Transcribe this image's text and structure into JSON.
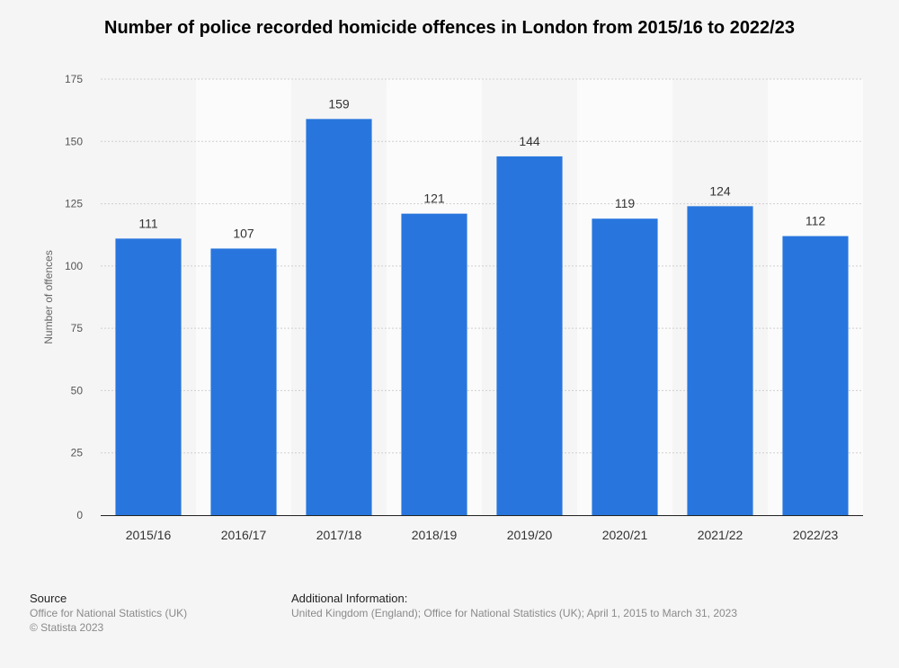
{
  "chart_data": {
    "type": "bar",
    "title": "Number of police recorded homicide offences in London from 2015/16 to 2022/23",
    "ylabel": "Number of offences",
    "xlabel": "",
    "categories": [
      "2015/16",
      "2016/17",
      "2017/18",
      "2018/19",
      "2019/20",
      "2020/21",
      "2021/22",
      "2022/23"
    ],
    "series": [
      {
        "values": [
          111,
          107,
          159,
          121,
          144,
          119,
          124,
          112
        ]
      }
    ],
    "ylim": [
      0,
      175
    ],
    "yticks": [
      0,
      25,
      50,
      75,
      100,
      125,
      150,
      175
    ],
    "grid": true,
    "bar_color": "#2876dd",
    "data_labels": true
  },
  "footer": {
    "source_heading": "Source",
    "source_lines": [
      "Office for National Statistics (UK)",
      "© Statista 2023"
    ],
    "info_heading": "Additional Information:",
    "info_text": "United Kingdom (England); Office for National Statistics (UK); April 1, 2015 to March 31, 2023"
  }
}
